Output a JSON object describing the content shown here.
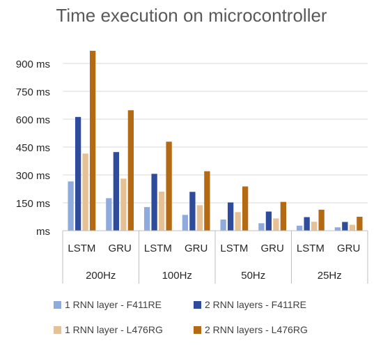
{
  "chart_data": {
    "type": "bar",
    "title": "Time execution on microcontroller",
    "y_unit": "ms",
    "ylim": [
      0,
      1000
    ],
    "yticks": [
      0,
      150,
      300,
      450,
      600,
      750,
      900
    ],
    "ytick_labels": [
      "ms",
      "150 ms",
      "300 ms",
      "450 ms",
      "600 ms",
      "750 ms",
      "900 ms"
    ],
    "grid": true,
    "legend_position": "bottom",
    "groups": [
      {
        "label": "200Hz",
        "categories": [
          "LSTM",
          "GRU"
        ]
      },
      {
        "label": "100Hz",
        "categories": [
          "LSTM",
          "GRU"
        ]
      },
      {
        "label": "50Hz",
        "categories": [
          "LSTM",
          "GRU"
        ]
      },
      {
        "label": "25Hz",
        "categories": [
          "LSTM",
          "GRU"
        ]
      }
    ],
    "categories": [
      "200Hz LSTM",
      "200Hz GRU",
      "100Hz LSTM",
      "100Hz GRU",
      "50Hz LSTM",
      "50Hz GRU",
      "25Hz LSTM",
      "25Hz GRU"
    ],
    "series": [
      {
        "name": "1 RNN layer - F411RE",
        "color": "#8faadc",
        "values": [
          265,
          175,
          127,
          85,
          60,
          40,
          27,
          18
        ]
      },
      {
        "name": "2 RNN layers - F411RE",
        "color": "#2f4b9c",
        "values": [
          612,
          423,
          306,
          209,
          152,
          103,
          73,
          47
        ]
      },
      {
        "name": "1 RNN layer - L476RG",
        "color": "#e7c196",
        "values": [
          415,
          280,
          210,
          137,
          100,
          66,
          48,
          32
        ]
      },
      {
        "name": "2 RNN layers - L476RG",
        "color": "#b36a12",
        "values": [
          968,
          648,
          479,
          320,
          238,
          155,
          113,
          75
        ]
      }
    ]
  }
}
